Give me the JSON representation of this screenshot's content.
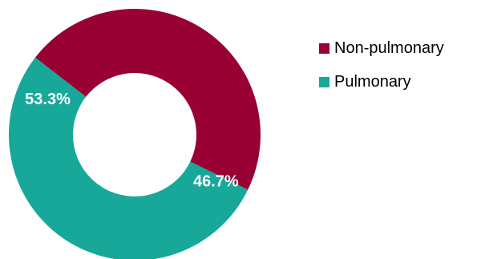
{
  "chart_data": {
    "type": "pie",
    "donut": true,
    "categories": [
      "Non-pulmonary",
      "Pulmonary"
    ],
    "values": [
      46.7,
      53.3
    ],
    "data_labels": [
      "46.7%",
      "53.3%"
    ],
    "colors": [
      "#990033",
      "#17a89a"
    ],
    "legend_position": "right",
    "title": ""
  }
}
